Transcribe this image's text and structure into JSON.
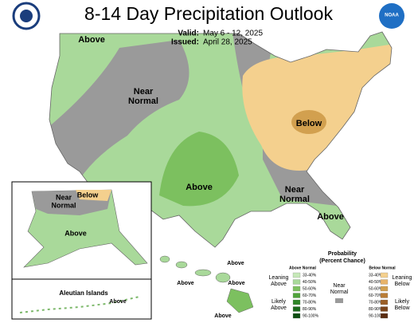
{
  "header": {
    "title": "8-14 Day Precipitation Outlook",
    "valid_label": "Valid:",
    "valid": "May 6 - 12, 2025",
    "issued_label": "Issued:",
    "issued": "April 28, 2025",
    "logo_text": "NOAA"
  },
  "regions": [
    {
      "label": "Above"
    },
    {
      "lines": [
        "Near",
        "Normal"
      ]
    },
    {
      "label": "Above"
    },
    {
      "label": "Below"
    },
    {
      "lines": [
        "Near",
        "Normal"
      ]
    },
    {
      "label": "Above"
    },
    {
      "lines": [
        "Near",
        "Normal"
      ]
    },
    {
      "label": "Below"
    },
    {
      "label": "Above"
    },
    {
      "label": "Aleutian Islands"
    },
    {
      "label": "Above"
    },
    {
      "label": "Above"
    },
    {
      "label": "Above"
    },
    {
      "label": "Above"
    },
    {
      "label": "Above"
    }
  ],
  "legend": {
    "title": "Probability",
    "subtitle": "(Percent Chance)",
    "above_header": "Above Normal",
    "below_header": "Below Normal",
    "near_lines": [
      "Near",
      "Normal"
    ],
    "leaning_above": [
      "Leaning",
      "Above"
    ],
    "likely_above": [
      "Likely",
      "Above"
    ],
    "leaning_below": [
      "Leaning",
      "Below"
    ],
    "likely_below": [
      "Likely",
      "Below"
    ],
    "above_ranges": [
      "33-40%",
      "40-50%",
      "50-60%",
      "60-70%",
      "70-80%",
      "80-90%",
      "90-100%"
    ],
    "below_ranges": [
      "33-40%",
      "40-50%",
      "50-60%",
      "60-70%",
      "70-80%",
      "80-90%",
      "90-100%"
    ]
  }
}
